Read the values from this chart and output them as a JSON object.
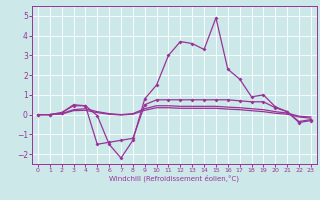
{
  "xlabel": "Windchill (Refroidissement éolien,°C)",
  "x_values": [
    0,
    1,
    2,
    3,
    4,
    5,
    6,
    7,
    8,
    9,
    10,
    11,
    12,
    13,
    14,
    15,
    16,
    17,
    18,
    19,
    20,
    21,
    22,
    23
  ],
  "line1": [
    0.0,
    0.0,
    0.1,
    0.5,
    0.45,
    -0.05,
    -1.5,
    -2.2,
    -1.3,
    0.8,
    1.5,
    3.0,
    3.7,
    3.6,
    3.3,
    4.9,
    2.3,
    1.8,
    0.9,
    1.0,
    0.4,
    0.15,
    -0.4,
    -0.3
  ],
  "line2": [
    0.0,
    0.0,
    0.1,
    0.45,
    0.45,
    -1.5,
    -1.4,
    -1.3,
    -1.2,
    0.5,
    0.75,
    0.75,
    0.75,
    0.75,
    0.75,
    0.75,
    0.75,
    0.7,
    0.65,
    0.65,
    0.35,
    0.15,
    -0.35,
    -0.25
  ],
  "line3": [
    0.0,
    0.0,
    0.05,
    0.25,
    0.3,
    0.15,
    0.05,
    0.0,
    0.05,
    0.3,
    0.45,
    0.45,
    0.42,
    0.42,
    0.42,
    0.42,
    0.38,
    0.35,
    0.3,
    0.25,
    0.15,
    0.08,
    -0.08,
    -0.12
  ],
  "line4": [
    0.0,
    0.0,
    0.03,
    0.2,
    0.22,
    0.1,
    0.02,
    -0.02,
    0.02,
    0.22,
    0.35,
    0.35,
    0.32,
    0.32,
    0.32,
    0.32,
    0.28,
    0.25,
    0.2,
    0.15,
    0.07,
    0.02,
    -0.12,
    -0.18
  ],
  "line_color": "#993399",
  "bg_color": "#cce8e8",
  "grid_color": "#ffffff",
  "ylim": [
    -2.5,
    5.5
  ],
  "yticks": [
    -2,
    -1,
    0,
    1,
    2,
    3,
    4,
    5
  ]
}
